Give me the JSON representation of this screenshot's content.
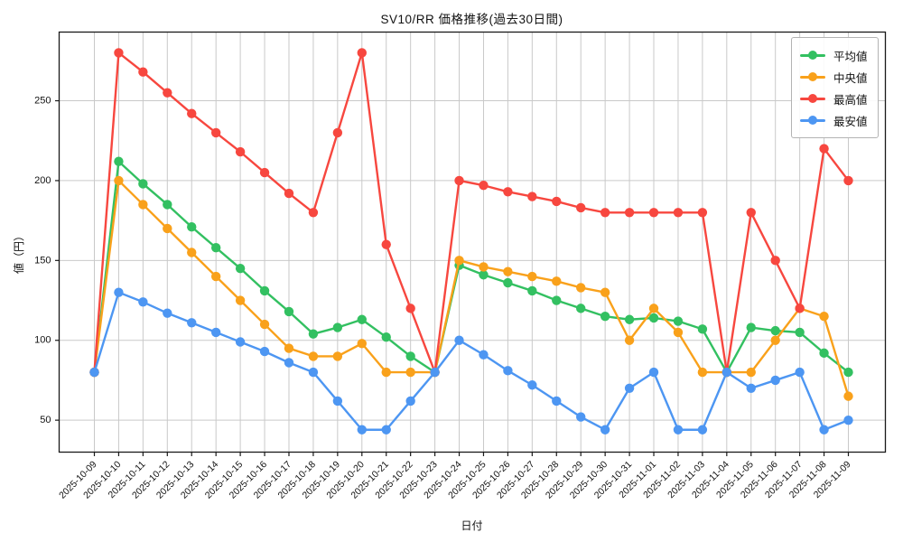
{
  "chart_data": {
    "type": "line",
    "title": "SV10/RR 価格推移(過去30日間)",
    "xlabel": "日付",
    "ylabel": "値（円）",
    "grid": true,
    "legend_position": "upper right",
    "ylim": [
      30,
      293
    ],
    "yticks": [
      50,
      100,
      150,
      200,
      250
    ],
    "x": [
      "2025-10-09",
      "2025-10-10",
      "2025-10-11",
      "2025-10-12",
      "2025-10-13",
      "2025-10-14",
      "2025-10-15",
      "2025-10-16",
      "2025-10-17",
      "2025-10-18",
      "2025-10-19",
      "2025-10-20",
      "2025-10-21",
      "2025-10-22",
      "2025-10-23",
      "2025-10-24",
      "2025-10-25",
      "2025-10-26",
      "2025-10-27",
      "2025-10-28",
      "2025-10-29",
      "2025-10-30",
      "2025-10-31",
      "2025-11-01",
      "2025-11-02",
      "2025-11-03",
      "2025-11-04",
      "2025-11-05",
      "2025-11-06",
      "2025-11-07",
      "2025-11-08",
      "2025-11-09"
    ],
    "series": [
      {
        "name": "平均値",
        "color": "#33c061",
        "values": [
          80,
          212,
          198,
          185,
          171,
          158,
          145,
          131,
          118,
          104,
          108,
          113,
          102,
          90,
          80,
          147,
          141,
          136,
          131,
          125,
          120,
          115,
          113,
          114,
          112,
          107,
          80,
          108,
          106,
          105,
          92,
          80
        ]
      },
      {
        "name": "中央値",
        "color": "#f9a11b",
        "values": [
          80,
          200,
          185,
          170,
          155,
          140,
          125,
          110,
          95,
          90,
          90,
          98,
          80,
          80,
          80,
          150,
          146,
          143,
          140,
          137,
          133,
          130,
          100,
          120,
          105,
          80,
          80,
          80,
          100,
          120,
          115,
          65
        ]
      },
      {
        "name": "最高値",
        "color": "#f7473f",
        "values": [
          80,
          280,
          268,
          255,
          242,
          230,
          218,
          205,
          192,
          180,
          230,
          280,
          160,
          120,
          80,
          200,
          197,
          193,
          190,
          187,
          183,
          180,
          180,
          180,
          180,
          180,
          80,
          180,
          150,
          120,
          220,
          200
        ]
      },
      {
        "name": "最安値",
        "color": "#4d96f2",
        "values": [
          80,
          130,
          124,
          117,
          111,
          105,
          99,
          93,
          86,
          80,
          62,
          44,
          44,
          62,
          80,
          100,
          91,
          81,
          72,
          62,
          52,
          44,
          70,
          80,
          44,
          44,
          80,
          70,
          75,
          80,
          44,
          50
        ]
      }
    ],
    "style": {
      "grid_color": "#c9c9c9",
      "spine_color": "#1a1a1a",
      "tick_text_color": "#111111"
    }
  }
}
